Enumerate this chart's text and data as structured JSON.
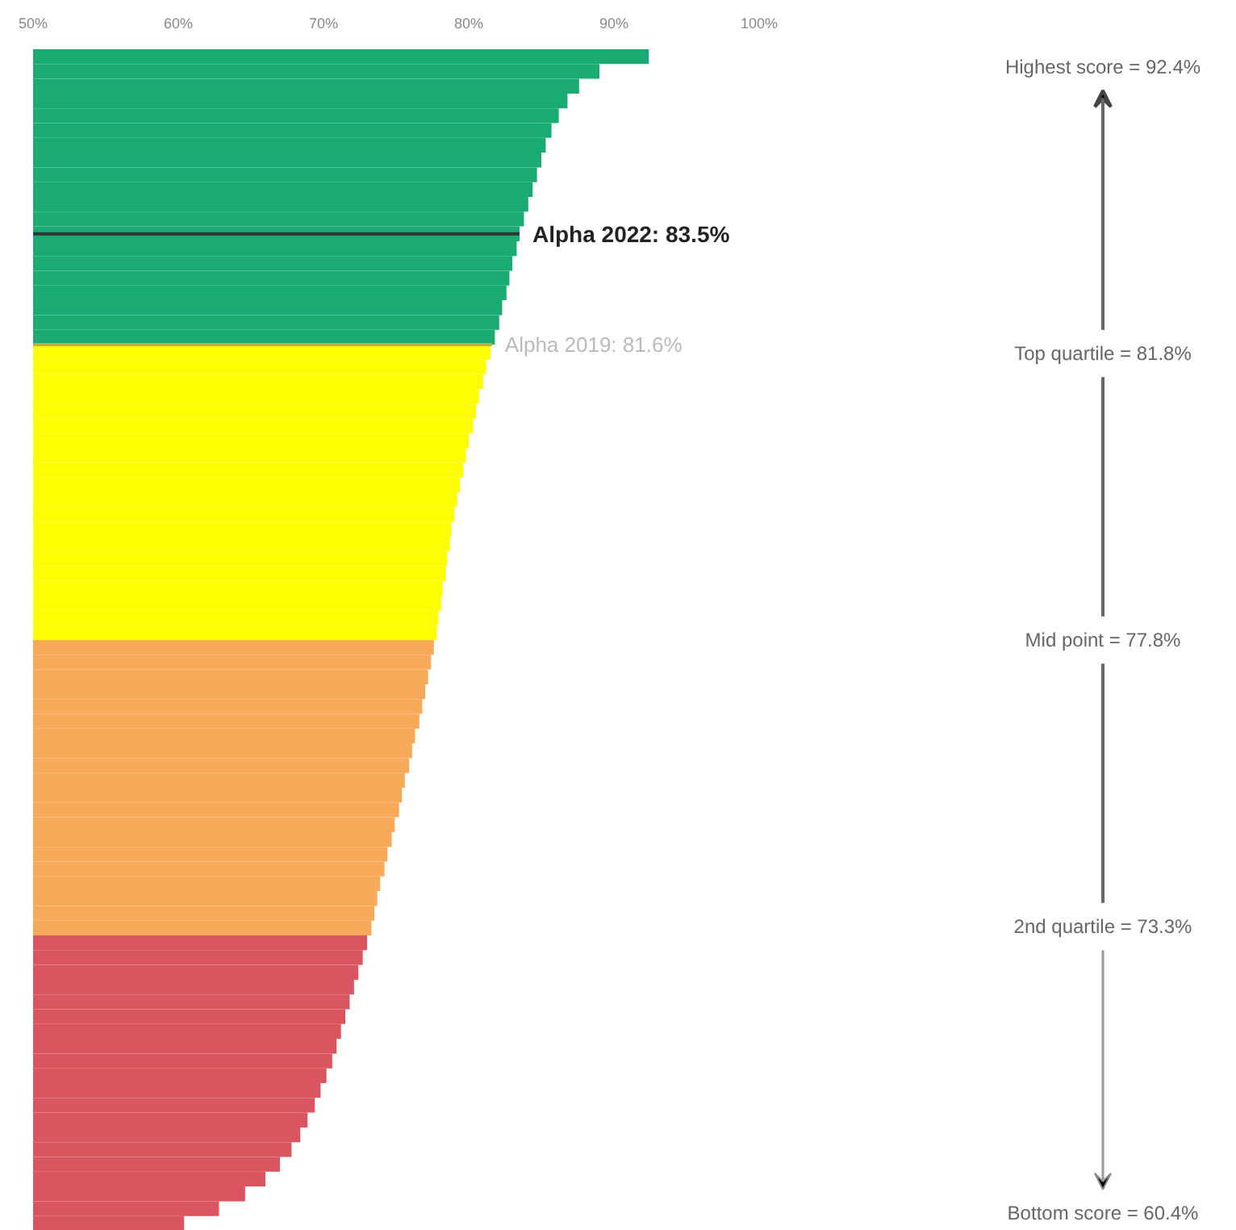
{
  "chart_data": {
    "type": "bar",
    "orientation": "horizontal",
    "categories": [
      null,
      null,
      null,
      null,
      null,
      null,
      null,
      null,
      null,
      null,
      null,
      null,
      null,
      null,
      null,
      null,
      null,
      null,
      null,
      null,
      null,
      null,
      null,
      null,
      null,
      null,
      null,
      null,
      null,
      null,
      null,
      null,
      null,
      null,
      null,
      null,
      null,
      null,
      null,
      null,
      null,
      null,
      null,
      null,
      null,
      null,
      null,
      null,
      null,
      null,
      null,
      null,
      null,
      null,
      null,
      null,
      null,
      null,
      null,
      null,
      null,
      null,
      null,
      null,
      null,
      null,
      null,
      null,
      null,
      null,
      null,
      null,
      null,
      null,
      null,
      null,
      null,
      null,
      null,
      null
    ],
    "values": [
      92.4,
      89.0,
      87.6,
      86.8,
      86.2,
      85.7,
      85.3,
      85.0,
      84.7,
      84.4,
      84.1,
      83.8,
      83.5,
      83.3,
      83.0,
      82.8,
      82.6,
      82.3,
      82.1,
      81.8,
      81.5,
      81.2,
      81.0,
      80.7,
      80.5,
      80.3,
      80.0,
      79.8,
      79.6,
      79.4,
      79.2,
      79.0,
      78.8,
      78.7,
      78.5,
      78.4,
      78.2,
      78.1,
      77.9,
      77.8,
      77.6,
      77.4,
      77.2,
      77.0,
      76.8,
      76.6,
      76.3,
      76.1,
      75.9,
      75.6,
      75.4,
      75.2,
      74.9,
      74.7,
      74.4,
      74.2,
      73.9,
      73.7,
      73.5,
      73.3,
      73.0,
      72.7,
      72.4,
      72.1,
      71.8,
      71.5,
      71.2,
      70.9,
      70.6,
      70.2,
      69.8,
      69.4,
      68.9,
      68.4,
      67.8,
      67.0,
      66.0,
      64.6,
      62.8,
      60.4
    ],
    "colors": [
      "#1aab72",
      "#1aab72",
      "#1aab72",
      "#1aab72",
      "#1aab72",
      "#1aab72",
      "#1aab72",
      "#1aab72",
      "#1aab72",
      "#1aab72",
      "#1aab72",
      "#1aab72",
      "#1aab72",
      "#1aab72",
      "#1aab72",
      "#1aab72",
      "#1aab72",
      "#1aab72",
      "#1aab72",
      "#1aab72",
      "#ffff00",
      "#ffff00",
      "#ffff00",
      "#ffff00",
      "#ffff00",
      "#ffff00",
      "#ffff00",
      "#ffff00",
      "#ffff00",
      "#ffff00",
      "#ffff00",
      "#ffff00",
      "#ffff00",
      "#ffff00",
      "#ffff00",
      "#ffff00",
      "#ffff00",
      "#ffff00",
      "#ffff00",
      "#ffff00",
      "#f8aa5a",
      "#f8aa5a",
      "#f8aa5a",
      "#f8aa5a",
      "#f8aa5a",
      "#f8aa5a",
      "#f8aa5a",
      "#f8aa5a",
      "#f8aa5a",
      "#f8aa5a",
      "#f8aa5a",
      "#f8aa5a",
      "#f8aa5a",
      "#f8aa5a",
      "#f8aa5a",
      "#f8aa5a",
      "#f8aa5a",
      "#f8aa5a",
      "#f8aa5a",
      "#f8aa5a",
      "#d9555f",
      "#d9555f",
      "#d9555f",
      "#d9555f",
      "#d9555f",
      "#d9555f",
      "#d9555f",
      "#d9555f",
      "#d9555f",
      "#d9555f",
      "#d9555f",
      "#d9555f",
      "#d9555f",
      "#d9555f",
      "#d9555f",
      "#d9555f",
      "#d9555f",
      "#d9555f",
      "#d9555f",
      "#d9555f"
    ],
    "xlim": [
      50,
      100
    ],
    "xticks": [
      {
        "value": 50,
        "label": "50%"
      },
      {
        "value": 60,
        "label": "60%"
      },
      {
        "value": 70,
        "label": "70%"
      },
      {
        "value": 80,
        "label": "80%"
      },
      {
        "value": 90,
        "label": "90%"
      },
      {
        "value": 100,
        "label": "100%"
      }
    ],
    "grid": false,
    "annotations": [
      {
        "text": "Alpha 2022: 83.5%",
        "x": 83.5
      },
      {
        "text": "Alpha 2019: 81.6%",
        "x": 81.6
      },
      "Highest score = 92.4%",
      "Top quartile = 81.8%",
      "Mid point = 77.8%",
      "2nd quartile = 73.3%",
      "Bottom score = 60.4%"
    ]
  }
}
